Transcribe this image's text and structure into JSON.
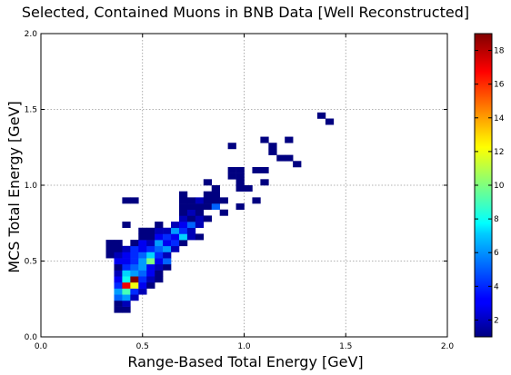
{
  "chart_data": {
    "type": "heatmap",
    "title": "Selected, Contained Muons in BNB Data [Well Reconstructed]",
    "xlabel": "Range-Based Total Energy [GeV]",
    "ylabel": "MCS Total Energy [GeV]",
    "xlim": [
      0.0,
      2.0
    ],
    "ylim": [
      0.0,
      2.0
    ],
    "x_ticks": [
      "0.0",
      "0.5",
      "1.0",
      "1.5",
      "2.0"
    ],
    "y_ticks": [
      "0.0",
      "0.5",
      "1.0",
      "1.5",
      "2.0"
    ],
    "grid": true,
    "bin_width": 0.04,
    "colorbar": {
      "colormap": "jet",
      "min": 1,
      "max": 19,
      "ticks": [
        "2",
        "4",
        "6",
        "8",
        "10",
        "12",
        "14",
        "16",
        "18"
      ]
    },
    "bins": [
      [
        0.36,
        0.16,
        1
      ],
      [
        0.4,
        0.16,
        1
      ],
      [
        0.36,
        0.2,
        1
      ],
      [
        0.4,
        0.2,
        2
      ],
      [
        0.36,
        0.24,
        5
      ],
      [
        0.4,
        0.24,
        6
      ],
      [
        0.44,
        0.24,
        2
      ],
      [
        0.36,
        0.28,
        6
      ],
      [
        0.4,
        0.28,
        9
      ],
      [
        0.44,
        0.28,
        4
      ],
      [
        0.48,
        0.28,
        2
      ],
      [
        0.36,
        0.32,
        4
      ],
      [
        0.4,
        0.32,
        17
      ],
      [
        0.44,
        0.32,
        12
      ],
      [
        0.48,
        0.32,
        3
      ],
      [
        0.52,
        0.32,
        1
      ],
      [
        0.36,
        0.36,
        3
      ],
      [
        0.4,
        0.36,
        8
      ],
      [
        0.44,
        0.36,
        19
      ],
      [
        0.48,
        0.36,
        4
      ],
      [
        0.52,
        0.36,
        2
      ],
      [
        0.56,
        0.36,
        1
      ],
      [
        0.36,
        0.4,
        2
      ],
      [
        0.4,
        0.4,
        7
      ],
      [
        0.44,
        0.4,
        6
      ],
      [
        0.48,
        0.4,
        5
      ],
      [
        0.52,
        0.4,
        3
      ],
      [
        0.56,
        0.4,
        1
      ],
      [
        0.36,
        0.44,
        1
      ],
      [
        0.4,
        0.44,
        4
      ],
      [
        0.44,
        0.44,
        5
      ],
      [
        0.48,
        0.44,
        6
      ],
      [
        0.52,
        0.44,
        3
      ],
      [
        0.56,
        0.44,
        2
      ],
      [
        0.6,
        0.44,
        1
      ],
      [
        0.36,
        0.48,
        3
      ],
      [
        0.4,
        0.48,
        3
      ],
      [
        0.44,
        0.48,
        4
      ],
      [
        0.48,
        0.48,
        6
      ],
      [
        0.52,
        0.48,
        10
      ],
      [
        0.56,
        0.48,
        3
      ],
      [
        0.6,
        0.48,
        5
      ],
      [
        0.32,
        0.52,
        1
      ],
      [
        0.36,
        0.52,
        2
      ],
      [
        0.4,
        0.52,
        3
      ],
      [
        0.44,
        0.52,
        4
      ],
      [
        0.48,
        0.52,
        5
      ],
      [
        0.52,
        0.52,
        7
      ],
      [
        0.56,
        0.52,
        4
      ],
      [
        0.6,
        0.52,
        2
      ],
      [
        0.32,
        0.56,
        1
      ],
      [
        0.36,
        0.56,
        1
      ],
      [
        0.4,
        0.56,
        2
      ],
      [
        0.44,
        0.56,
        4
      ],
      [
        0.48,
        0.56,
        3
      ],
      [
        0.52,
        0.56,
        4
      ],
      [
        0.56,
        0.56,
        5
      ],
      [
        0.6,
        0.56,
        6
      ],
      [
        0.64,
        0.56,
        2
      ],
      [
        0.32,
        0.6,
        1
      ],
      [
        0.36,
        0.6,
        1
      ],
      [
        0.44,
        0.6,
        1
      ],
      [
        0.48,
        0.6,
        3
      ],
      [
        0.52,
        0.6,
        2
      ],
      [
        0.56,
        0.6,
        6
      ],
      [
        0.6,
        0.6,
        3
      ],
      [
        0.64,
        0.6,
        4
      ],
      [
        0.68,
        0.6,
        1
      ],
      [
        0.48,
        0.64,
        1
      ],
      [
        0.52,
        0.64,
        1
      ],
      [
        0.56,
        0.64,
        3
      ],
      [
        0.6,
        0.64,
        4
      ],
      [
        0.64,
        0.64,
        3
      ],
      [
        0.68,
        0.64,
        7
      ],
      [
        0.72,
        0.64,
        2
      ],
      [
        0.76,
        0.64,
        1
      ],
      [
        0.48,
        0.68,
        1
      ],
      [
        0.52,
        0.68,
        1
      ],
      [
        0.56,
        0.68,
        2
      ],
      [
        0.6,
        0.68,
        2
      ],
      [
        0.64,
        0.68,
        6
      ],
      [
        0.68,
        0.68,
        4
      ],
      [
        0.72,
        0.68,
        2
      ],
      [
        0.4,
        0.72,
        1
      ],
      [
        0.56,
        0.72,
        1
      ],
      [
        0.64,
        0.72,
        2
      ],
      [
        0.68,
        0.72,
        3
      ],
      [
        0.72,
        0.72,
        5
      ],
      [
        0.76,
        0.72,
        2
      ],
      [
        0.68,
        0.76,
        2
      ],
      [
        0.72,
        0.76,
        1
      ],
      [
        0.76,
        0.76,
        2
      ],
      [
        0.8,
        0.76,
        1
      ],
      [
        0.68,
        0.8,
        1
      ],
      [
        0.72,
        0.8,
        2
      ],
      [
        0.76,
        0.8,
        1
      ],
      [
        0.88,
        0.8,
        1
      ],
      [
        0.68,
        0.84,
        1
      ],
      [
        0.72,
        0.84,
        1
      ],
      [
        0.76,
        0.84,
        1
      ],
      [
        0.8,
        0.84,
        1
      ],
      [
        0.84,
        0.84,
        5
      ],
      [
        0.96,
        0.84,
        1
      ],
      [
        0.4,
        0.88,
        1
      ],
      [
        0.44,
        0.88,
        1
      ],
      [
        0.68,
        0.88,
        1
      ],
      [
        0.72,
        0.88,
        1
      ],
      [
        0.76,
        0.88,
        2
      ],
      [
        0.8,
        0.88,
        1
      ],
      [
        0.84,
        0.88,
        1
      ],
      [
        0.88,
        0.88,
        1
      ],
      [
        1.04,
        0.88,
        1
      ],
      [
        0.68,
        0.92,
        1
      ],
      [
        0.8,
        0.92,
        1
      ],
      [
        0.84,
        0.92,
        1
      ],
      [
        0.84,
        0.96,
        1
      ],
      [
        0.96,
        0.96,
        1
      ],
      [
        1.0,
        0.96,
        1
      ],
      [
        0.8,
        1.0,
        1
      ],
      [
        0.96,
        1.0,
        1
      ],
      [
        1.08,
        1.0,
        1
      ],
      [
        0.92,
        1.04,
        1
      ],
      [
        0.96,
        1.04,
        1
      ],
      [
        0.92,
        1.08,
        1
      ],
      [
        0.96,
        1.08,
        1
      ],
      [
        1.04,
        1.08,
        1
      ],
      [
        1.08,
        1.08,
        1
      ],
      [
        1.24,
        1.12,
        1
      ],
      [
        1.16,
        1.16,
        1
      ],
      [
        1.2,
        1.16,
        1
      ],
      [
        1.12,
        1.2,
        1
      ],
      [
        0.92,
        1.24,
        1
      ],
      [
        1.12,
        1.24,
        1
      ],
      [
        1.08,
        1.28,
        1
      ],
      [
        1.2,
        1.28,
        1
      ],
      [
        1.4,
        1.4,
        1
      ],
      [
        1.36,
        1.44,
        1
      ]
    ]
  }
}
